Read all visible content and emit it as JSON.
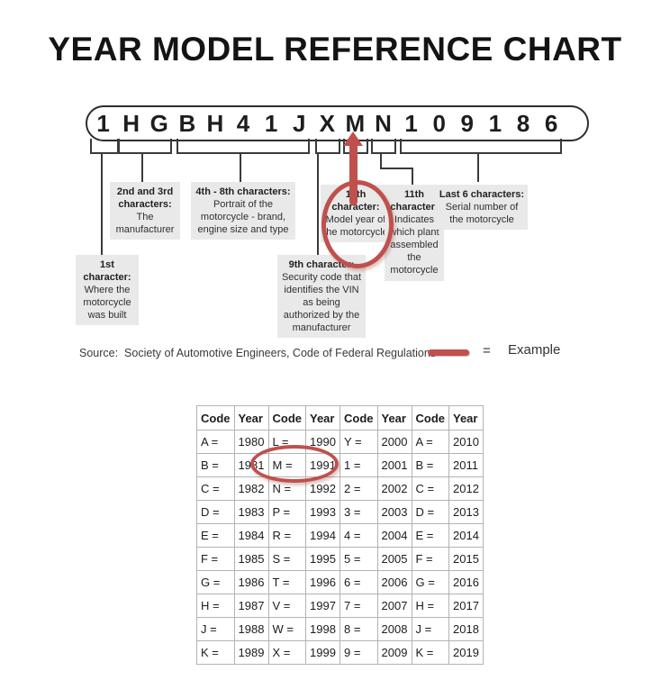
{
  "title": "YEAR MODEL REFERENCE CHART",
  "vin": "1HGBH41JXMN109186",
  "callouts": [
    {
      "heading": "1st character:",
      "body": "Where the motorcycle was built"
    },
    {
      "heading": "2nd and 3rd characters:",
      "body": "The manufacturer"
    },
    {
      "heading": "4th - 8th characters:",
      "body": "Portrait of the motorcycle - brand, engine size and type"
    },
    {
      "heading": "9th character:",
      "body": "Security code that identifies the VIN as being authorized by the manufacturer"
    },
    {
      "heading": "10th character:",
      "body": "Model year of the motorcycle"
    },
    {
      "heading": "11th character:",
      "body": "Indicates which plant assembled the motorcycle"
    },
    {
      "heading": "Last 6 characters:",
      "body": "Serial number of the motorcycle"
    }
  ],
  "source_line": "Source:  Society of Automotive Engineers, Code of Federal Regulations",
  "example_legend": {
    "equals_sign": "=",
    "label": "Example"
  },
  "accent_color": "#c0504d",
  "year_table": {
    "headers": [
      "Code",
      "Year",
      "Code",
      "Year",
      "Code",
      "Year",
      "Code",
      "Year"
    ],
    "rows": [
      [
        "A =",
        "1980",
        "L =",
        "1990",
        "Y =",
        "2000",
        "A =",
        "2010"
      ],
      [
        "B =",
        "1981",
        "M =",
        "1991",
        "1 =",
        "2001",
        "B =",
        "2011"
      ],
      [
        "C =",
        "1982",
        "N =",
        "1992",
        "2 =",
        "2002",
        "C =",
        "2012"
      ],
      [
        "D =",
        "1983",
        "P =",
        "1993",
        "3 =",
        "2003",
        "D =",
        "2013"
      ],
      [
        "E =",
        "1984",
        "R =",
        "1994",
        "4 =",
        "2004",
        "E =",
        "2014"
      ],
      [
        "F =",
        "1985",
        "S =",
        "1995",
        "5 =",
        "2005",
        "F =",
        "2015"
      ],
      [
        "G =",
        "1986",
        "T =",
        "1996",
        "6 =",
        "2006",
        "G =",
        "2016"
      ],
      [
        "H =",
        "1987",
        "V =",
        "1997",
        "7 =",
        "2007",
        "H =",
        "2017"
      ],
      [
        "J =",
        "1988",
        "W =",
        "1998",
        "8 =",
        "2008",
        "J =",
        "2018"
      ],
      [
        "K =",
        "1989",
        "X =",
        "1999",
        "9 =",
        "2009",
        "K =",
        "2019"
      ]
    ]
  }
}
